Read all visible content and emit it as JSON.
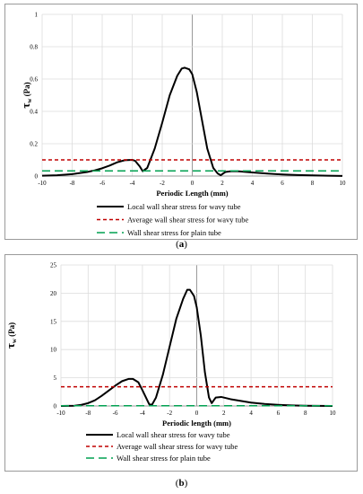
{
  "chart_data": [
    {
      "type": "line",
      "panel": "a",
      "caption_prefix": "(",
      "caption_letter": "a",
      "caption_suffix": ")",
      "ylabel_symbol": "τ",
      "ylabel_sub": "w",
      "ylabel_unit": " (Pa)",
      "xlabel": "Periodic Length (mm)",
      "xlim": [
        -10,
        10
      ],
      "ylim": [
        0,
        1
      ],
      "xticks": [
        -10,
        -8,
        -6,
        -4,
        -2,
        0,
        2,
        4,
        6,
        8,
        10
      ],
      "yticks": [
        0,
        0.2,
        0.4,
        0.6,
        0.8,
        1
      ],
      "ytick_labels": [
        "0",
        "0.2",
        "0.4",
        "0.6",
        "0.8",
        "1"
      ],
      "grid": true,
      "legend_position": "bottom",
      "series": [
        {
          "name": "Local wall shear stress for wavy tube",
          "color": "#000000",
          "style": "solid",
          "x": [
            -10,
            -9,
            -8,
            -7,
            -6.5,
            -6,
            -5.5,
            -5,
            -4.5,
            -4,
            -3.8,
            -3.5,
            -3.3,
            -3.0,
            -2.5,
            -2.0,
            -1.5,
            -1.0,
            -0.7,
            -0.5,
            -0.2,
            0.0,
            0.3,
            0.7,
            1.0,
            1.4,
            1.7,
            1.9,
            2.2,
            2.6,
            3.0,
            4.0,
            5.0,
            6.0,
            7.0,
            8.0,
            9.0,
            10.0
          ],
          "values": [
            0.002,
            0.005,
            0.012,
            0.025,
            0.035,
            0.048,
            0.065,
            0.085,
            0.098,
            0.1,
            0.094,
            0.06,
            0.03,
            0.05,
            0.17,
            0.33,
            0.5,
            0.62,
            0.665,
            0.67,
            0.66,
            0.63,
            0.52,
            0.32,
            0.17,
            0.05,
            0.015,
            0.005,
            0.025,
            0.03,
            0.03,
            0.022,
            0.015,
            0.01,
            0.006,
            0.004,
            0.002,
            0.001
          ]
        },
        {
          "name": "Average wall shear stress for wavy tube",
          "color": "#c00000",
          "style": "dashed",
          "x": [
            -10,
            10
          ],
          "values": [
            0.1,
            0.1
          ]
        },
        {
          "name": "Wall shear stress for plain tube",
          "color": "#00a050",
          "style": "longdash",
          "x": [
            -10,
            10
          ],
          "values": [
            0.032,
            0.032
          ]
        }
      ]
    },
    {
      "type": "line",
      "panel": "b",
      "caption_prefix": "(",
      "caption_letter": "b",
      "caption_suffix": ")",
      "ylabel_symbol": "τ",
      "ylabel_sub": "w",
      "ylabel_unit": " (Pa)",
      "xlabel": "Periodic length (mm)",
      "xlim": [
        -10,
        10
      ],
      "ylim": [
        0,
        25
      ],
      "xticks": [
        -10,
        -8,
        -6,
        -4,
        -2,
        0,
        2,
        4,
        6,
        8,
        10
      ],
      "yticks": [
        0,
        5,
        10,
        15,
        20,
        25
      ],
      "ytick_labels": [
        "0",
        "5",
        "10",
        "15",
        "20",
        "25"
      ],
      "grid": true,
      "legend_position": "bottom",
      "series": [
        {
          "name": "Local wall shear stress for wavy tube",
          "color": "#000000",
          "style": "solid",
          "x": [
            -10,
            -9,
            -8.5,
            -8,
            -7.5,
            -7,
            -6.5,
            -6,
            -5.5,
            -5.0,
            -4.7,
            -4.3,
            -4.0,
            -3.7,
            -3.5,
            -3.3,
            -3.0,
            -2.5,
            -2.0,
            -1.5,
            -1.0,
            -0.7,
            -0.5,
            -0.2,
            0.0,
            0.3,
            0.6,
            0.9,
            1.1,
            1.4,
            1.8,
            2.5,
            3.0,
            4.0,
            5.0,
            6.0,
            7.0,
            8.0,
            9.0,
            10.0
          ],
          "values": [
            0.0,
            0.05,
            0.2,
            0.5,
            1.0,
            1.8,
            2.7,
            3.6,
            4.4,
            4.8,
            4.8,
            4.2,
            2.8,
            1.3,
            0.3,
            0.2,
            1.5,
            5.5,
            10.5,
            15.5,
            19.0,
            20.6,
            20.6,
            19.5,
            17.5,
            12.5,
            6.0,
            1.5,
            0.5,
            1.5,
            1.6,
            1.2,
            1.0,
            0.6,
            0.35,
            0.2,
            0.1,
            0.05,
            0.02,
            0.0
          ]
        },
        {
          "name": "Average wall shear stress for wavy tube",
          "color": "#c00000",
          "style": "dashed",
          "x": [
            -10,
            10
          ],
          "values": [
            3.4,
            3.4
          ]
        },
        {
          "name": "Wall shear stress for plain tube",
          "color": "#00a050",
          "style": "longdash",
          "x": [
            -10,
            10
          ],
          "values": [
            0.05,
            0.05
          ]
        }
      ]
    }
  ]
}
